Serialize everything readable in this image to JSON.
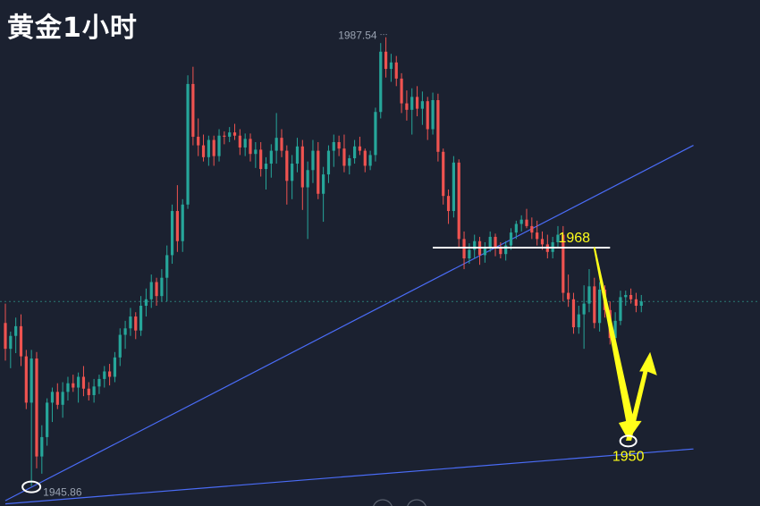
{
  "title": "黄金1小时",
  "colors": {
    "background": "#1b2130",
    "up": "#26a69a",
    "down": "#ef5350",
    "trendline": "#4a6cf7",
    "resistance": "#ffffff",
    "annotation": "#ffff1a",
    "price_line": "#2a7a74"
  },
  "chart_data": {
    "type": "candlestick",
    "timeframe": "1H",
    "ylim": [
      1944,
      1991
    ],
    "high_label": "1987.54",
    "low_label": "1945.86",
    "levels": [
      {
        "label": "1968",
        "value": 1968
      },
      {
        "label": "1950",
        "value": 1950
      }
    ],
    "current_price": 1963.0,
    "ohlc": [
      [
        1961.0,
        1962.8,
        1957.5,
        1958.6
      ],
      [
        1958.6,
        1960.2,
        1956.8,
        1959.8
      ],
      [
        1959.8,
        1961.5,
        1958.2,
        1960.7
      ],
      [
        1960.7,
        1961.8,
        1957.0,
        1957.9
      ],
      [
        1957.9,
        1958.5,
        1953.0,
        1953.6
      ],
      [
        1953.6,
        1958.5,
        1945.86,
        1957.7
      ],
      [
        1957.7,
        1958.3,
        1947.5,
        1948.6
      ],
      [
        1948.6,
        1951.5,
        1947.0,
        1950.4
      ],
      [
        1950.4,
        1954.0,
        1949.6,
        1953.6
      ],
      [
        1953.6,
        1955.0,
        1951.8,
        1954.6
      ],
      [
        1954.6,
        1955.4,
        1953.0,
        1953.4
      ],
      [
        1953.4,
        1955.5,
        1952.2,
        1954.6
      ],
      [
        1954.6,
        1956.0,
        1953.8,
        1955.4
      ],
      [
        1955.4,
        1956.2,
        1954.6,
        1955.0
      ],
      [
        1955.0,
        1956.4,
        1953.6,
        1956.0
      ],
      [
        1956.0,
        1957.0,
        1954.2,
        1954.9
      ],
      [
        1954.9,
        1955.5,
        1953.8,
        1954.3
      ],
      [
        1954.3,
        1955.8,
        1953.6,
        1955.1
      ],
      [
        1955.1,
        1956.2,
        1954.4,
        1955.8
      ],
      [
        1955.8,
        1957.0,
        1955.0,
        1956.5
      ],
      [
        1956.5,
        1957.2,
        1955.2,
        1956.0
      ],
      [
        1956.0,
        1958.3,
        1955.5,
        1957.8
      ],
      [
        1957.8,
        1960.5,
        1957.0,
        1959.9
      ],
      [
        1959.9,
        1961.2,
        1958.6,
        1960.5
      ],
      [
        1960.5,
        1962.4,
        1959.8,
        1961.6
      ],
      [
        1961.6,
        1962.0,
        1959.5,
        1960.3
      ],
      [
        1960.3,
        1963.5,
        1959.8,
        1962.6
      ],
      [
        1962.6,
        1964.2,
        1961.6,
        1963.2
      ],
      [
        1963.2,
        1965.5,
        1962.4,
        1964.8
      ],
      [
        1964.8,
        1965.2,
        1962.6,
        1963.5
      ],
      [
        1963.5,
        1966.0,
        1963.0,
        1965.2
      ],
      [
        1965.2,
        1968.2,
        1963.0,
        1967.3
      ],
      [
        1967.3,
        1972.0,
        1966.5,
        1971.4
      ],
      [
        1971.4,
        1973.8,
        1967.6,
        1968.6
      ],
      [
        1968.6,
        1972.5,
        1967.6,
        1972.0
      ],
      [
        1972.0,
        1984.0,
        1971.6,
        1983.2
      ],
      [
        1983.2,
        1984.8,
        1977.5,
        1978.3
      ],
      [
        1978.3,
        1980.0,
        1976.5,
        1977.5
      ],
      [
        1977.5,
        1978.5,
        1976.0,
        1976.4
      ],
      [
        1976.4,
        1978.4,
        1975.6,
        1978.0
      ],
      [
        1978.0,
        1978.4,
        1975.6,
        1976.5
      ],
      [
        1976.5,
        1979.0,
        1976.0,
        1978.4
      ],
      [
        1978.4,
        1978.8,
        1977.6,
        1978.3
      ],
      [
        1978.3,
        1979.2,
        1977.8,
        1978.7
      ],
      [
        1978.7,
        1979.5,
        1978.0,
        1978.4
      ],
      [
        1978.4,
        1979.0,
        1976.6,
        1977.3
      ],
      [
        1977.3,
        1978.6,
        1976.5,
        1978.1
      ],
      [
        1978.1,
        1978.6,
        1976.0,
        1976.7
      ],
      [
        1976.7,
        1977.8,
        1975.4,
        1977.1
      ],
      [
        1977.1,
        1977.8,
        1974.6,
        1975.3
      ],
      [
        1975.3,
        1976.4,
        1973.4,
        1975.8
      ],
      [
        1975.8,
        1977.6,
        1974.5,
        1977.0
      ],
      [
        1977.0,
        1980.5,
        1975.8,
        1978.2
      ],
      [
        1978.2,
        1979.0,
        1976.4,
        1977.0
      ],
      [
        1977.0,
        1977.5,
        1972.0,
        1974.2
      ],
      [
        1974.2,
        1976.6,
        1972.5,
        1975.8
      ],
      [
        1975.8,
        1978.2,
        1975.0,
        1977.4
      ],
      [
        1977.4,
        1978.0,
        1971.5,
        1973.6
      ],
      [
        1973.6,
        1976.0,
        1968.8,
        1975.2
      ],
      [
        1975.2,
        1978.0,
        1974.0,
        1977.0
      ],
      [
        1977.0,
        1977.8,
        1972.5,
        1973.0
      ],
      [
        1973.0,
        1975.5,
        1970.4,
        1974.8
      ],
      [
        1974.8,
        1977.5,
        1974.0,
        1977.0
      ],
      [
        1977.0,
        1978.5,
        1975.5,
        1977.8
      ],
      [
        1977.8,
        1978.4,
        1976.5,
        1977.2
      ],
      [
        1977.2,
        1978.5,
        1975.0,
        1975.6
      ],
      [
        1975.6,
        1976.6,
        1974.8,
        1976.3
      ],
      [
        1976.3,
        1978.0,
        1975.8,
        1977.4
      ],
      [
        1977.4,
        1978.3,
        1976.6,
        1977.0
      ],
      [
        1977.0,
        1977.2,
        1975.0,
        1975.6
      ],
      [
        1975.6,
        1977.0,
        1975.2,
        1976.6
      ],
      [
        1976.6,
        1981.0,
        1976.0,
        1980.6
      ],
      [
        1980.6,
        1987.0,
        1980.0,
        1986.2
      ],
      [
        1986.2,
        1987.54,
        1983.8,
        1984.6
      ],
      [
        1984.6,
        1986.0,
        1983.4,
        1985.2
      ],
      [
        1985.2,
        1985.8,
        1983.0,
        1983.7
      ],
      [
        1983.7,
        1984.2,
        1980.5,
        1981.4
      ],
      [
        1981.4,
        1982.6,
        1979.8,
        1980.8
      ],
      [
        1980.8,
        1982.8,
        1978.5,
        1982.0
      ],
      [
        1982.0,
        1983.0,
        1980.2,
        1980.9
      ],
      [
        1980.9,
        1982.5,
        1979.4,
        1981.6
      ],
      [
        1981.6,
        1982.0,
        1978.0,
        1979.0
      ],
      [
        1979.0,
        1982.4,
        1978.5,
        1981.7
      ],
      [
        1981.7,
        1982.3,
        1976.0,
        1976.9
      ],
      [
        1976.9,
        1977.2,
        1972.0,
        1972.8
      ],
      [
        1972.8,
        1973.4,
        1970.2,
        1971.4
      ],
      [
        1971.4,
        1976.5,
        1970.8,
        1975.9
      ],
      [
        1975.9,
        1976.2,
        1968.0,
        1968.8
      ],
      [
        1968.8,
        1969.5,
        1966.0,
        1967.0
      ],
      [
        1967.0,
        1968.4,
        1966.5,
        1967.8
      ],
      [
        1967.8,
        1969.2,
        1967.0,
        1968.6
      ],
      [
        1968.6,
        1969.0,
        1966.4,
        1967.3
      ],
      [
        1967.3,
        1968.5,
        1966.6,
        1968.0
      ],
      [
        1968.0,
        1969.5,
        1967.6,
        1969.0
      ],
      [
        1969.0,
        1969.3,
        1967.2,
        1968.0
      ],
      [
        1968.0,
        1968.5,
        1967.0,
        1967.4
      ],
      [
        1967.4,
        1968.6,
        1966.8,
        1968.2
      ],
      [
        1968.2,
        1969.8,
        1967.8,
        1969.4
      ],
      [
        1969.4,
        1970.5,
        1968.8,
        1970.2
      ],
      [
        1970.2,
        1971.0,
        1969.5,
        1970.6
      ],
      [
        1970.6,
        1971.6,
        1969.8,
        1970.0
      ],
      [
        1970.0,
        1970.8,
        1968.8,
        1969.4
      ],
      [
        1969.4,
        1970.5,
        1968.2,
        1968.8
      ],
      [
        1968.8,
        1969.5,
        1967.8,
        1968.3
      ],
      [
        1968.3,
        1969.2,
        1967.0,
        1967.6
      ],
      [
        1967.6,
        1969.0,
        1967.0,
        1968.5
      ],
      [
        1968.5,
        1970.0,
        1968.0,
        1969.2
      ],
      [
        1969.2,
        1970.0,
        1963.0,
        1963.8
      ],
      [
        1963.8,
        1965.5,
        1962.5,
        1963.2
      ],
      [
        1963.2,
        1963.8,
        1960.0,
        1960.6
      ],
      [
        1960.6,
        1962.6,
        1960.0,
        1961.8
      ],
      [
        1961.8,
        1964.5,
        1958.6,
        1962.8
      ],
      [
        1962.8,
        1966.0,
        1962.0,
        1964.4
      ],
      [
        1964.4,
        1965.2,
        1960.5,
        1961.0
      ],
      [
        1961.0,
        1964.8,
        1960.2,
        1964.1
      ],
      [
        1964.1,
        1964.5,
        1961.5,
        1962.2
      ],
      [
        1962.2,
        1963.0,
        1959.0,
        1959.6
      ],
      [
        1959.6,
        1962.0,
        1957.8,
        1961.2
      ],
      [
        1961.2,
        1964.0,
        1960.8,
        1963.4
      ],
      [
        1963.4,
        1964.0,
        1962.6,
        1963.6
      ],
      [
        1963.6,
        1964.2,
        1962.8,
        1963.2
      ],
      [
        1963.2,
        1963.8,
        1962.0,
        1962.6
      ],
      [
        1962.6,
        1963.6,
        1962.0,
        1963.0
      ]
    ],
    "trendlines": [
      {
        "from": [
          0,
          1944.5
        ],
        "to": [
          132,
          1977.5
        ]
      },
      {
        "from": [
          0,
          1944.2
        ],
        "to": [
          132,
          1949.3
        ]
      }
    ],
    "resistance_segment": {
      "from_index": 82,
      "to_index": 116,
      "value": 1968
    },
    "projection": {
      "from": [
        113,
        1968.0
      ],
      "to": [
        119.5,
        1950.2
      ],
      "rebound_to": [
        123.5,
        1958.2
      ]
    }
  }
}
